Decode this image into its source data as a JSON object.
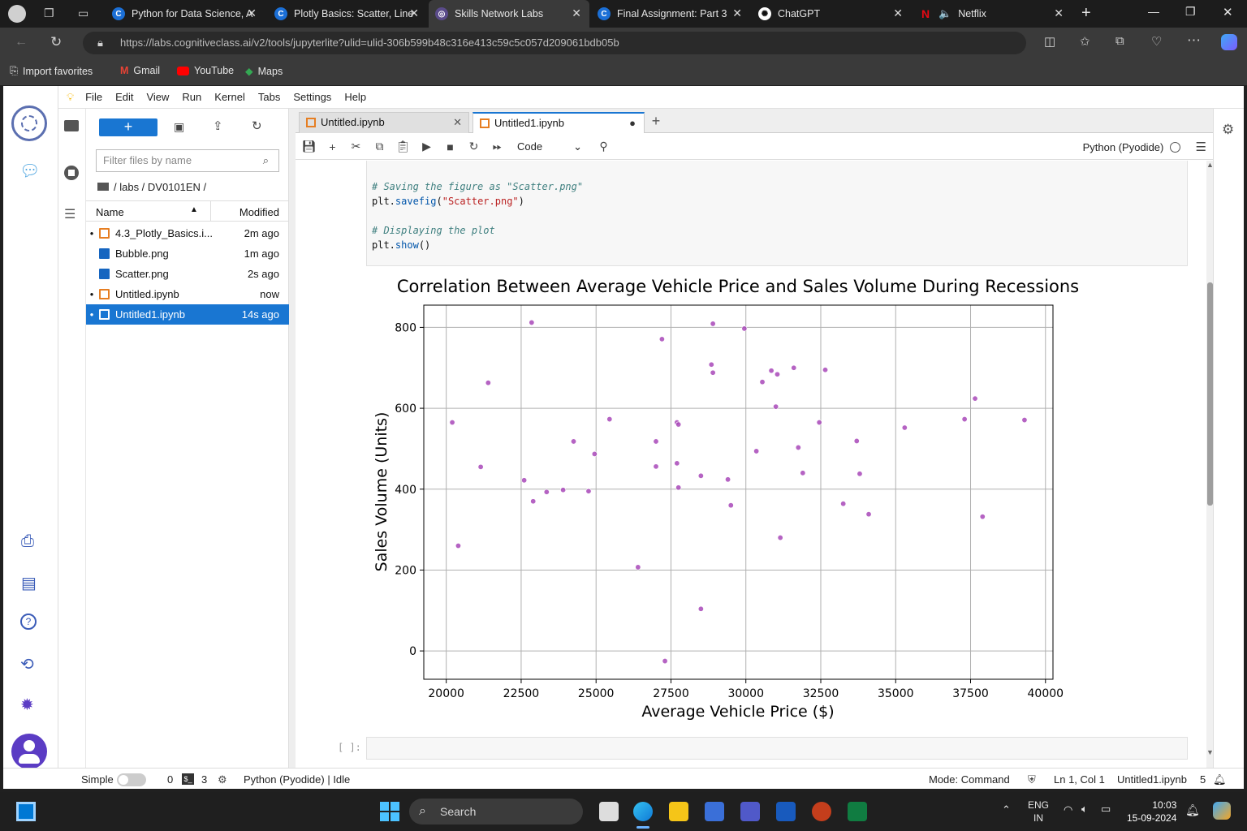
{
  "browser": {
    "tabs": [
      {
        "label": "Python for Data Science, A"
      },
      {
        "label": "Plotly Basics: Scatter, Line"
      },
      {
        "label": "Skills Network Labs"
      },
      {
        "label": "Final Assignment: Part 3 -"
      },
      {
        "label": "ChatGPT"
      },
      {
        "label": "Netflix"
      }
    ],
    "url": "https://labs.cognitiveclass.ai/v2/tools/jupyterlite?ulid=ulid-306b599b48c316e413c59c5c057d209061bdb05b",
    "favorites": [
      "Import favorites",
      "Gmail",
      "YouTube",
      "Maps"
    ]
  },
  "jupyter": {
    "menu": [
      "File",
      "Edit",
      "View",
      "Run",
      "Kernel",
      "Tabs",
      "Settings",
      "Help"
    ],
    "filter_placeholder": "Filter files by name",
    "breadcrumb": "/ labs / DV0101EN /",
    "columns": {
      "name": "Name",
      "modified": "Modified"
    },
    "files": [
      {
        "name": "4.3_Plotly_Basics.i...",
        "modified": "2m ago",
        "type": "notebook",
        "running": true
      },
      {
        "name": "Bubble.png",
        "modified": "1m ago",
        "type": "image",
        "running": false
      },
      {
        "name": "Scatter.png",
        "modified": "2s ago",
        "type": "image",
        "running": false
      },
      {
        "name": "Untitled.ipynb",
        "modified": "now",
        "type": "notebook",
        "running": true
      },
      {
        "name": "Untitled1.ipynb",
        "modified": "14s ago",
        "type": "notebook",
        "running": true,
        "selected": true
      }
    ],
    "doc_tabs": [
      {
        "label": "Untitled.ipynb"
      },
      {
        "label": "Untitled1.ipynb"
      }
    ],
    "cell_type": "Code",
    "kernel": "Python (Pyodide)",
    "code": {
      "c1": "# Saving the figure as \"Scatter.png\"",
      "l1a": "plt.",
      "l1b": "savefig",
      "l1c": "(",
      "l1d": "\"Scatter.png\"",
      "l1e": ")",
      "c2": "# Displaying the plot",
      "l2a": "plt.",
      "l2b": "show",
      "l2c": "()"
    },
    "empty_prompt": "[ ]:",
    "status": {
      "mode_label": "Simple",
      "terminals": "0",
      "kernels": "3",
      "kernel_status": "Python (Pyodide) | Idle",
      "mode": "Mode: Command",
      "position": "Ln 1, Col 1",
      "file": "Untitled1.ipynb",
      "notifications": "5"
    }
  },
  "chart_data": {
    "type": "scatter",
    "title": "Correlation Between Average Vehicle Price and Sales Volume During Recessions",
    "xlabel": "Average Vehicle Price ($)",
    "ylabel": "Sales Volume (Units)",
    "xlim": [
      19250,
      40250
    ],
    "ylim": [
      -70,
      855
    ],
    "xticks": [
      20000,
      22500,
      25000,
      27500,
      30000,
      32500,
      35000,
      37500,
      40000
    ],
    "yticks": [
      0,
      200,
      400,
      600,
      800
    ],
    "grid": true,
    "marker_color": "#a848b8",
    "points": [
      [
        20200,
        565
      ],
      [
        20400,
        260
      ],
      [
        21150,
        455
      ],
      [
        21400,
        663
      ],
      [
        22600,
        422
      ],
      [
        22850,
        812
      ],
      [
        22900,
        370
      ],
      [
        23350,
        393
      ],
      [
        23900,
        398
      ],
      [
        24250,
        518
      ],
      [
        24750,
        395
      ],
      [
        24950,
        487
      ],
      [
        25450,
        573
      ],
      [
        26400,
        207
      ],
      [
        27000,
        518
      ],
      [
        27000,
        456
      ],
      [
        27200,
        771
      ],
      [
        27300,
        -25
      ],
      [
        27700,
        565
      ],
      [
        27750,
        560
      ],
      [
        27700,
        464
      ],
      [
        27750,
        404
      ],
      [
        28500,
        433
      ],
      [
        28500,
        104
      ],
      [
        28850,
        708
      ],
      [
        28900,
        688
      ],
      [
        28900,
        809
      ],
      [
        29400,
        424
      ],
      [
        29500,
        360
      ],
      [
        29950,
        797
      ],
      [
        30350,
        494
      ],
      [
        30550,
        665
      ],
      [
        30850,
        693
      ],
      [
        31000,
        604
      ],
      [
        31050,
        684
      ],
      [
        31150,
        280
      ],
      [
        31600,
        700
      ],
      [
        31750,
        503
      ],
      [
        31900,
        440
      ],
      [
        32450,
        565
      ],
      [
        32650,
        695
      ],
      [
        33250,
        364
      ],
      [
        33700,
        519
      ],
      [
        33800,
        438
      ],
      [
        34100,
        338
      ],
      [
        35300,
        552
      ],
      [
        37300,
        573
      ],
      [
        37650,
        624
      ],
      [
        37900,
        332
      ],
      [
        39300,
        571
      ]
    ]
  },
  "taskbar": {
    "search": "Search",
    "lang1": "ENG",
    "lang2": "IN",
    "time": "10:03",
    "date": "15-09-2024"
  }
}
